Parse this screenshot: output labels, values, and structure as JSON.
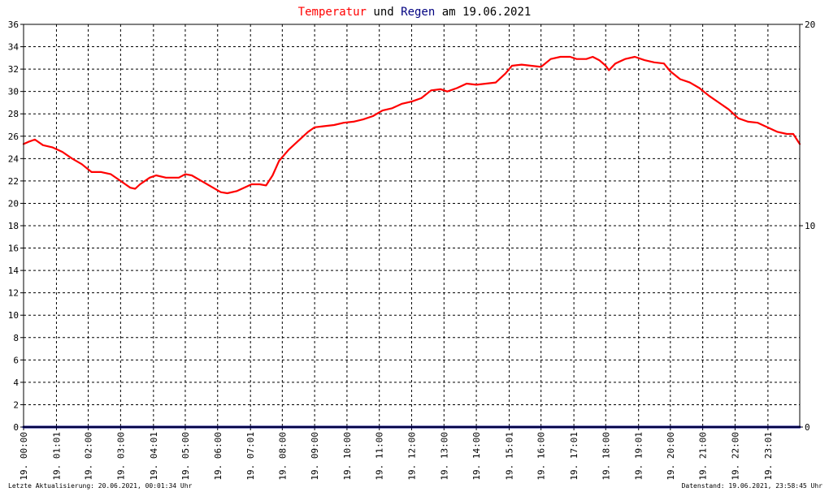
{
  "title": {
    "temp_word": "Temperatur",
    "und_word": "und",
    "rain_word": "Regen",
    "am_word": "am",
    "date": "19.06.2021",
    "temp_color": "#ff0000",
    "rain_color": "#000080",
    "text_color": "#000000"
  },
  "footer": {
    "left": "Letzte Aktualisierung: 20.06.2021, 00:01:34 Uhr",
    "right": "Datenstand: 19.06.2021, 23:58:45 Uhr"
  },
  "chart_data": {
    "type": "line",
    "title": "Temperatur und Regen am 19.06.2021",
    "grid": true,
    "x_range_hours": [
      0,
      24
    ],
    "x_ticks": [
      {
        "hour": 0.0,
        "label": "19. 00:00"
      },
      {
        "hour": 1.0167,
        "label": "19. 01:01"
      },
      {
        "hour": 2.0,
        "label": "19. 02:00"
      },
      {
        "hour": 3.0,
        "label": "19. 03:00"
      },
      {
        "hour": 4.0167,
        "label": "19. 04:01"
      },
      {
        "hour": 5.0,
        "label": "19. 05:00"
      },
      {
        "hour": 6.0,
        "label": "19. 06:00"
      },
      {
        "hour": 7.0167,
        "label": "19. 07:01"
      },
      {
        "hour": 8.0,
        "label": "19. 08:00"
      },
      {
        "hour": 9.0,
        "label": "19. 09:00"
      },
      {
        "hour": 10.0,
        "label": "19. 10:00"
      },
      {
        "hour": 11.0,
        "label": "19. 11:00"
      },
      {
        "hour": 12.0,
        "label": "19. 12:00"
      },
      {
        "hour": 13.0,
        "label": "19. 13:00"
      },
      {
        "hour": 14.0,
        "label": "19. 14:00"
      },
      {
        "hour": 15.0167,
        "label": "19. 15:01"
      },
      {
        "hour": 16.0,
        "label": "19. 16:00"
      },
      {
        "hour": 17.0167,
        "label": "19. 17:01"
      },
      {
        "hour": 18.0,
        "label": "19. 18:00"
      },
      {
        "hour": 19.0167,
        "label": "19. 19:01"
      },
      {
        "hour": 20.0,
        "label": "19. 20:00"
      },
      {
        "hour": 21.0,
        "label": "19. 21:00"
      },
      {
        "hour": 22.0,
        "label": "19. 22:00"
      },
      {
        "hour": 23.0167,
        "label": "19. 23:01"
      }
    ],
    "y_left": {
      "min": 0,
      "max": 36,
      "step": 2,
      "ticks": [
        "0",
        "2",
        "4",
        "6",
        "8",
        "10",
        "12",
        "14",
        "16",
        "18",
        "20",
        "22",
        "24",
        "26",
        "28",
        "30",
        "32",
        "34",
        "36"
      ]
    },
    "y_right": {
      "min": 0,
      "max": 20,
      "ticks": [
        {
          "value": 0,
          "label": "0"
        },
        {
          "value": 10,
          "label": "10"
        },
        {
          "value": 20,
          "label": "20"
        }
      ]
    },
    "series": [
      {
        "name": "Temperatur",
        "color": "#ff0000",
        "axis": "left",
        "points": [
          [
            0.0,
            25.3
          ],
          [
            0.15,
            25.5
          ],
          [
            0.35,
            25.7
          ],
          [
            0.6,
            25.2
          ],
          [
            0.9,
            25.0
          ],
          [
            1.2,
            24.6
          ],
          [
            1.5,
            24.0
          ],
          [
            1.8,
            23.5
          ],
          [
            2.1,
            22.8
          ],
          [
            2.4,
            22.8
          ],
          [
            2.7,
            22.6
          ],
          [
            3.0,
            22.0
          ],
          [
            3.3,
            21.4
          ],
          [
            3.45,
            21.3
          ],
          [
            3.6,
            21.7
          ],
          [
            3.9,
            22.3
          ],
          [
            4.1,
            22.5
          ],
          [
            4.4,
            22.3
          ],
          [
            4.8,
            22.3
          ],
          [
            5.0,
            22.6
          ],
          [
            5.2,
            22.5
          ],
          [
            5.5,
            22.0
          ],
          [
            5.8,
            21.5
          ],
          [
            6.1,
            21.0
          ],
          [
            6.3,
            20.9
          ],
          [
            6.6,
            21.1
          ],
          [
            6.9,
            21.5
          ],
          [
            7.05,
            21.7
          ],
          [
            7.3,
            21.7
          ],
          [
            7.5,
            21.6
          ],
          [
            7.7,
            22.5
          ],
          [
            7.9,
            23.8
          ],
          [
            8.2,
            24.8
          ],
          [
            8.5,
            25.6
          ],
          [
            8.8,
            26.4
          ],
          [
            9.0,
            26.8
          ],
          [
            9.3,
            26.9
          ],
          [
            9.6,
            27.0
          ],
          [
            9.9,
            27.2
          ],
          [
            10.2,
            27.3
          ],
          [
            10.5,
            27.5
          ],
          [
            10.8,
            27.8
          ],
          [
            11.1,
            28.3
          ],
          [
            11.4,
            28.5
          ],
          [
            11.7,
            28.9
          ],
          [
            12.0,
            29.1
          ],
          [
            12.3,
            29.4
          ],
          [
            12.6,
            30.1
          ],
          [
            12.9,
            30.2
          ],
          [
            13.1,
            30.0
          ],
          [
            13.4,
            30.3
          ],
          [
            13.7,
            30.7
          ],
          [
            14.0,
            30.6
          ],
          [
            14.3,
            30.7
          ],
          [
            14.6,
            30.8
          ],
          [
            14.9,
            31.6
          ],
          [
            15.1,
            32.3
          ],
          [
            15.4,
            32.4
          ],
          [
            15.7,
            32.3
          ],
          [
            16.0,
            32.2
          ],
          [
            16.3,
            32.9
          ],
          [
            16.6,
            33.1
          ],
          [
            16.9,
            33.1
          ],
          [
            17.1,
            32.9
          ],
          [
            17.4,
            32.9
          ],
          [
            17.6,
            33.1
          ],
          [
            17.8,
            32.8
          ],
          [
            18.0,
            32.3
          ],
          [
            18.1,
            31.9
          ],
          [
            18.3,
            32.5
          ],
          [
            18.6,
            32.9
          ],
          [
            18.9,
            33.1
          ],
          [
            19.2,
            32.8
          ],
          [
            19.5,
            32.6
          ],
          [
            19.8,
            32.5
          ],
          [
            20.0,
            31.8
          ],
          [
            20.3,
            31.1
          ],
          [
            20.6,
            30.8
          ],
          [
            20.9,
            30.3
          ],
          [
            21.2,
            29.6
          ],
          [
            21.5,
            29.0
          ],
          [
            21.8,
            28.4
          ],
          [
            22.1,
            27.6
          ],
          [
            22.4,
            27.3
          ],
          [
            22.7,
            27.2
          ],
          [
            23.0,
            26.8
          ],
          [
            23.3,
            26.4
          ],
          [
            23.6,
            26.2
          ],
          [
            23.8,
            26.2
          ],
          [
            24.0,
            25.3
          ]
        ]
      },
      {
        "name": "Regen",
        "color": "#000080",
        "axis": "right",
        "points": [
          [
            0.0,
            0.0
          ],
          [
            24.0,
            0.0
          ]
        ]
      }
    ]
  }
}
